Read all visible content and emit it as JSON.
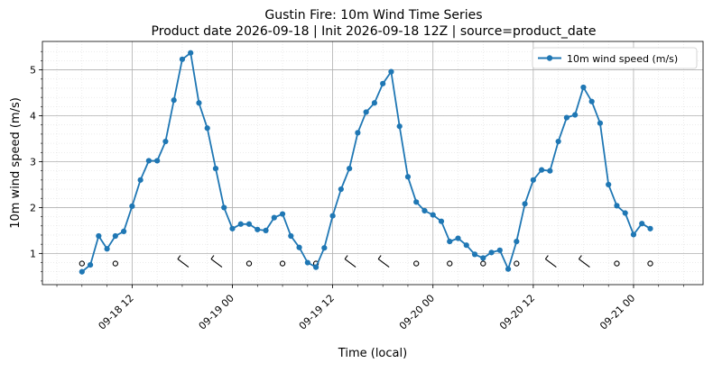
{
  "chart_data": {
    "type": "line",
    "title": "Gustin Fire: 10m Wind Time Series",
    "subtitle": "Product date 2026-09-18 | Init 2026-09-18 12Z | source=product_date",
    "xlabel": "Time (local)",
    "ylabel": "10m wind speed (m/s)",
    "x_ticks": [
      "09-18 12",
      "09-19 00",
      "09-19 12",
      "09-20 00",
      "09-20 12",
      "09-21 00"
    ],
    "y_ticks": [
      "1",
      "2",
      "3",
      "4",
      "5"
    ],
    "ylim": [
      0.32,
      5.62
    ],
    "grid": true,
    "legend_position": "top-right",
    "color": "#1f77b4",
    "series": [
      {
        "name": "10m wind speed (m/s)",
        "x_hours_from_0918_00": [
          6,
          7,
          8,
          9,
          10,
          11,
          12,
          13,
          14,
          15,
          16,
          17,
          18,
          19,
          20,
          21,
          22,
          23,
          24,
          25,
          26,
          27,
          28,
          29,
          30,
          31,
          32,
          33,
          34,
          35,
          36,
          37,
          38,
          39,
          40,
          41,
          42,
          43,
          44,
          45,
          46,
          47,
          48,
          49,
          50,
          51,
          52,
          53,
          54,
          55,
          56,
          57,
          58,
          59,
          60,
          61,
          62,
          63,
          64,
          65,
          66,
          67,
          68,
          69,
          70,
          71,
          72,
          73,
          74
        ],
        "x": [
          "09-18 06",
          "09-18 07",
          "09-18 08",
          "09-18 09",
          "09-18 10",
          "09-18 11",
          "09-18 12",
          "09-18 13",
          "09-18 14",
          "09-18 15",
          "09-18 16",
          "09-18 17",
          "09-18 18",
          "09-18 19",
          "09-18 20",
          "09-18 21",
          "09-18 22",
          "09-18 23",
          "09-19 00",
          "09-19 01",
          "09-19 02",
          "09-19 03",
          "09-19 04",
          "09-19 05",
          "09-19 06",
          "09-19 07",
          "09-19 08",
          "09-19 09",
          "09-19 10",
          "09-19 11",
          "09-19 12",
          "09-19 13",
          "09-19 14",
          "09-19 15",
          "09-19 16",
          "09-19 17",
          "09-19 18",
          "09-19 19",
          "09-19 20",
          "09-19 21",
          "09-19 22",
          "09-19 23",
          "09-20 00",
          "09-20 01",
          "09-20 02",
          "09-20 03",
          "09-20 04",
          "09-20 05",
          "09-20 06",
          "09-20 07",
          "09-20 08",
          "09-20 09",
          "09-20 10",
          "09-20 11",
          "09-20 12",
          "09-20 13",
          "09-20 14",
          "09-20 15",
          "09-20 16",
          "09-20 17",
          "09-20 18",
          "09-20 19",
          "09-20 20",
          "09-20 21",
          "09-20 22",
          "09-20 23",
          "09-21 00",
          "09-21 01",
          "09-21 02"
        ],
        "values": [
          0.6,
          0.75,
          1.38,
          1.1,
          1.38,
          1.48,
          2.03,
          2.6,
          3.02,
          3.02,
          3.44,
          4.34,
          5.23,
          5.37,
          4.28,
          3.73,
          2.85,
          2.0,
          1.54,
          1.64,
          1.64,
          1.52,
          1.5,
          1.78,
          1.86,
          1.38,
          1.13,
          0.8,
          0.7,
          1.12,
          1.82,
          2.4,
          2.85,
          3.63,
          4.08,
          4.28,
          4.7,
          4.96,
          3.77,
          2.67,
          2.12,
          1.93,
          1.84,
          1.7,
          1.26,
          1.33,
          1.18,
          0.98,
          0.9,
          1.02,
          1.07,
          0.66,
          1.26,
          2.08,
          2.6,
          2.82,
          2.8,
          3.44,
          3.96,
          4.02,
          4.62,
          4.31,
          3.84,
          2.5,
          2.04,
          1.88,
          1.41,
          1.65,
          1.54
        ]
      }
    ],
    "wind_barb_hours": [
      6,
      10,
      18,
      22,
      26,
      30,
      34,
      38,
      42,
      46,
      50,
      54,
      58,
      62,
      66,
      70,
      74
    ]
  },
  "legend": {
    "label": "10m wind speed (m/s)"
  }
}
